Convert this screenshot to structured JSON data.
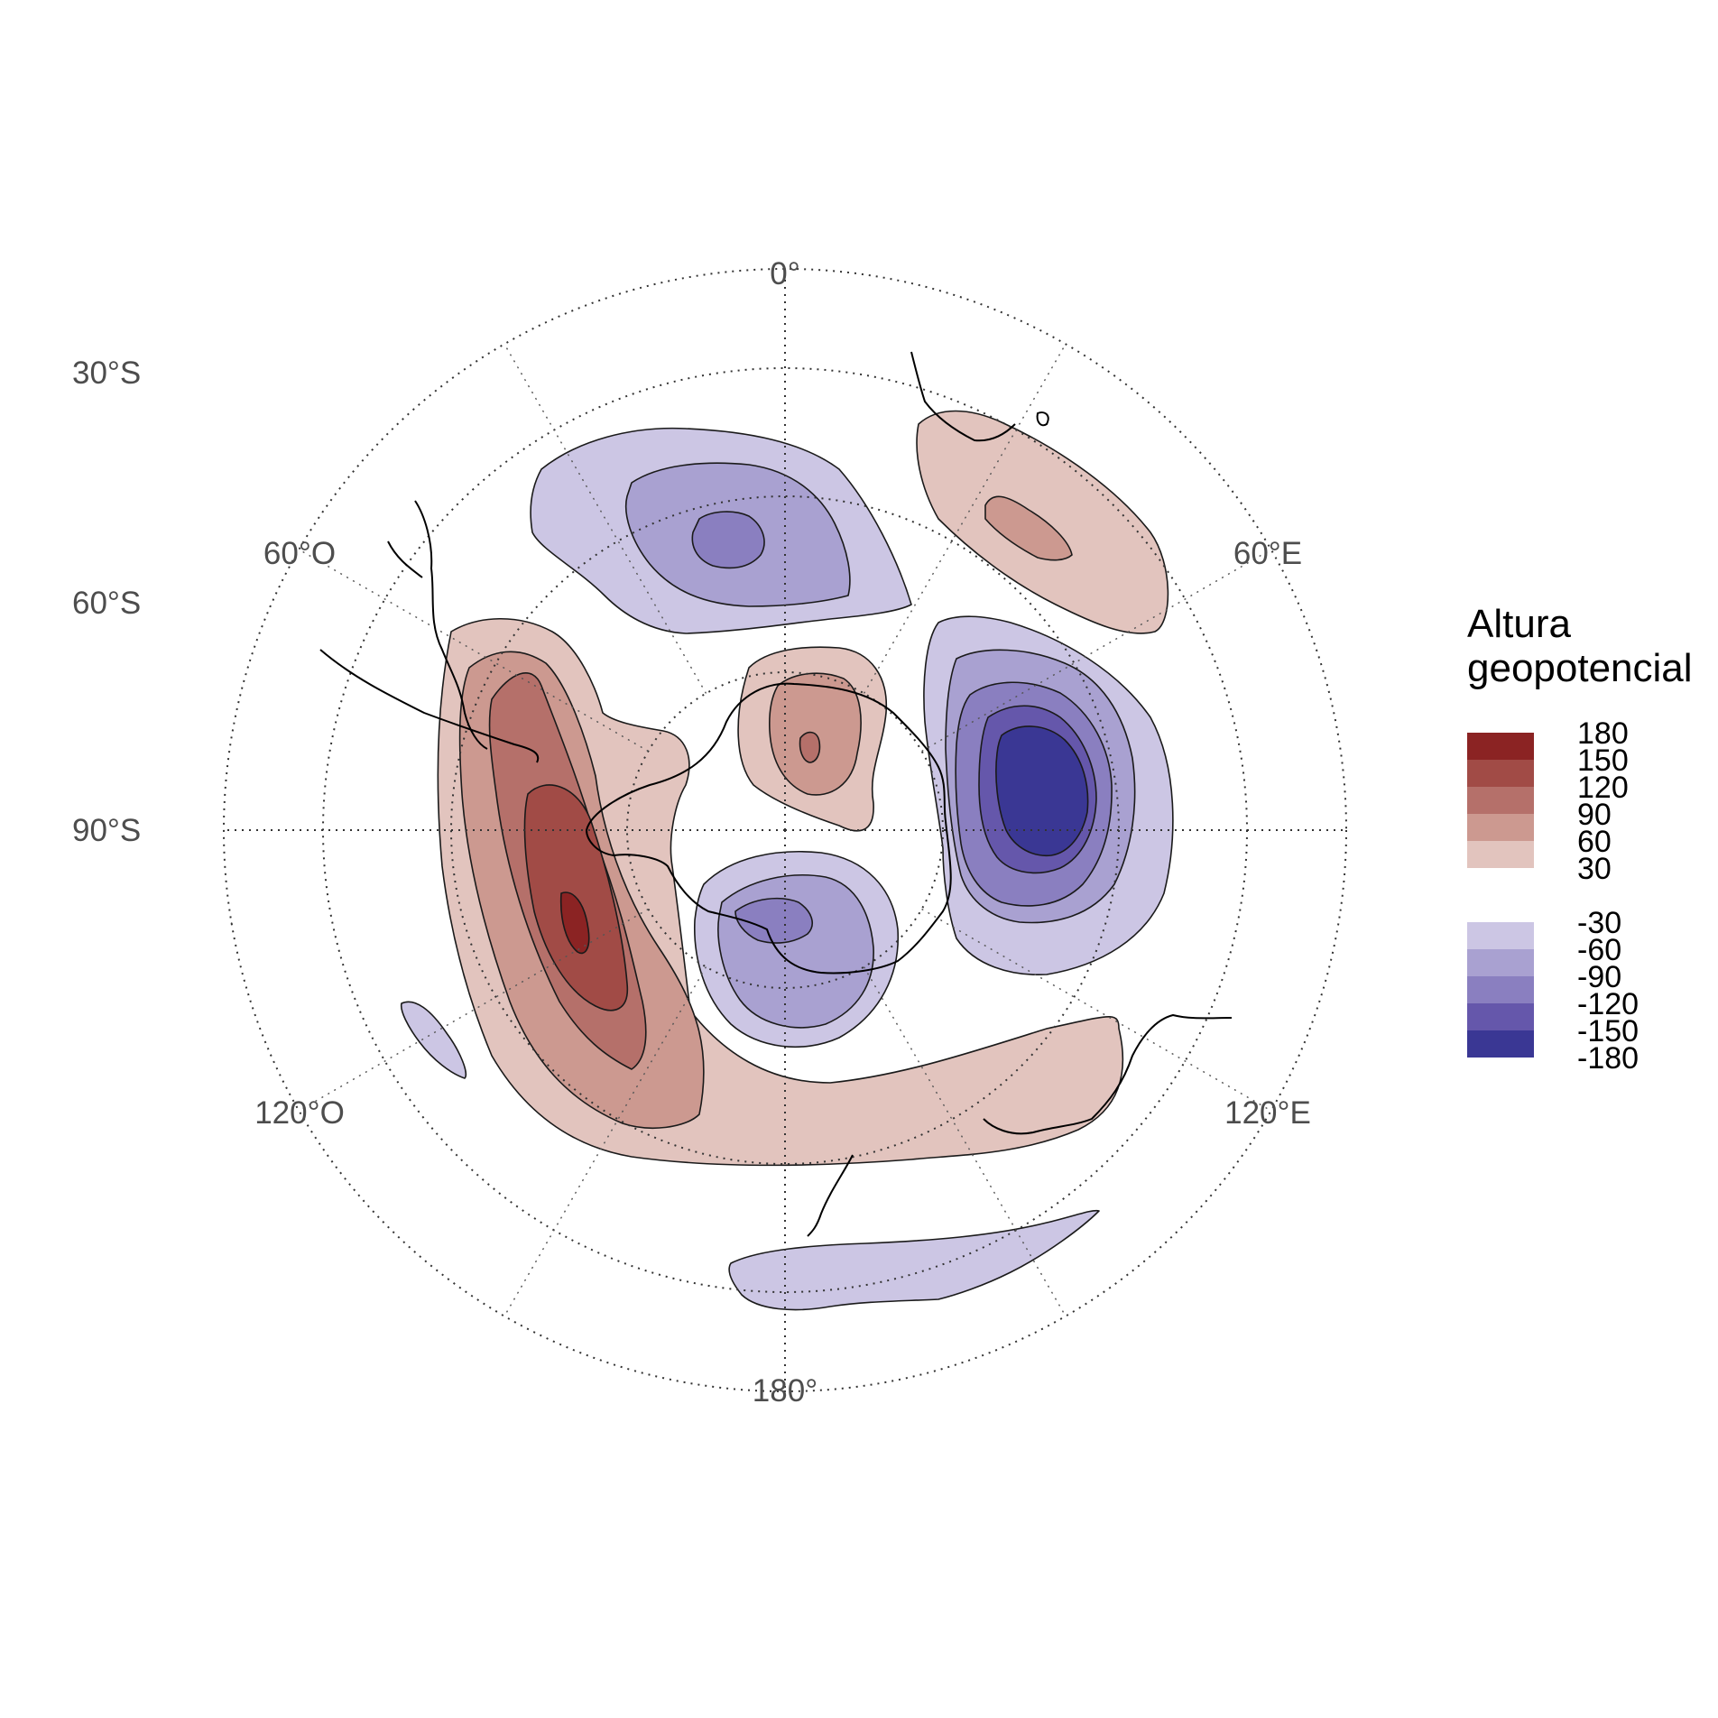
{
  "map": {
    "projection": "polar-stereographic-south",
    "center_lat": -90,
    "latitude_labels": [
      "30°S",
      "60°S",
      "90°S"
    ],
    "longitude_labels": [
      "0°",
      "60°E",
      "120°E",
      "180°",
      "120°O",
      "60°O"
    ],
    "latitude_circles_deg": [
      -30,
      -45,
      -60,
      -75
    ],
    "meridians_deg": [
      0,
      30,
      60,
      90,
      120,
      150,
      180,
      210,
      240,
      270,
      300,
      330
    ]
  },
  "legend": {
    "title_line1": "Altura",
    "title_line2": "geopotencial",
    "positive": [
      {
        "label": "180",
        "color": "#8b2323"
      },
      {
        "label": "150",
        "color": "#a14b46"
      },
      {
        "label": "120",
        "color": "#b5706a"
      },
      {
        "label": "90",
        "color": "#cc9990"
      },
      {
        "label": "60",
        "color": "#e2c4be"
      },
      {
        "label": "30",
        "color": ""
      }
    ],
    "negative": [
      {
        "label": "-30",
        "color": "#ccc6e4"
      },
      {
        "label": "-60",
        "color": "#a9a1d1"
      },
      {
        "label": "-90",
        "color": "#8a7fc0"
      },
      {
        "label": "-120",
        "color": "#6557ab"
      },
      {
        "label": "-150",
        "color": "#3a3794"
      },
      {
        "label": "-180",
        "color": ""
      }
    ]
  },
  "colors": {
    "pos_30": "#e2c4be",
    "pos_60": "#cc9990",
    "pos_90": "#b5706a",
    "pos_120": "#a14b46",
    "pos_150": "#8b2323",
    "neg_30": "#ccc6e4",
    "neg_60": "#a9a1d1",
    "neg_90": "#8a7fc0",
    "neg_120": "#6557ab",
    "neg_150": "#3a3794"
  }
}
